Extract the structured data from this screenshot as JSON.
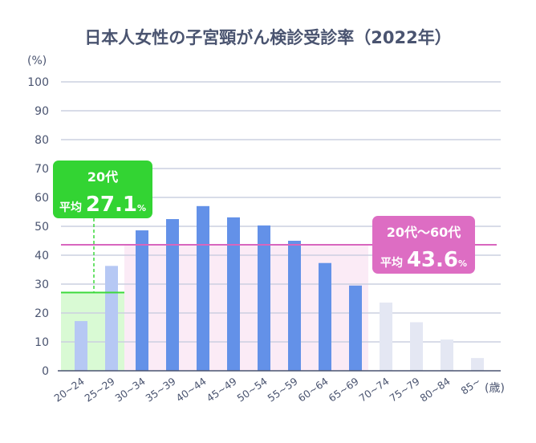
{
  "chart_data": {
    "type": "bar",
    "title": "日本人女性の子宮頸がん検診受診率（2022年）",
    "ylabel": "(%)",
    "xlabel": "(歳)",
    "ylim": [
      0,
      100
    ],
    "yticks": [
      0,
      10,
      20,
      30,
      40,
      50,
      60,
      70,
      80,
      90,
      100
    ],
    "grid": true,
    "categories": [
      "20~24",
      "25~29",
      "30~34",
      "35~39",
      "40~44",
      "45~49",
      "50~54",
      "55~59",
      "60~64",
      "65~69",
      "70~74",
      "75~79",
      "80~84",
      "85~"
    ],
    "values": [
      17.2,
      36.3,
      48.6,
      52.5,
      57.0,
      53.1,
      50.3,
      45.0,
      37.3,
      29.5,
      23.6,
      16.8,
      10.8,
      4.4
    ],
    "groups": [
      "20s",
      "20s",
      "30-60s",
      "30-60s",
      "30-60s",
      "30-60s",
      "30-60s",
      "30-60s",
      "30-60s",
      "30-60s",
      "70plus",
      "70plus",
      "70plus",
      "70plus"
    ],
    "colors": {
      "20s": "#b6c8f4",
      "30-60s": "#6391e8",
      "70plus": "#e4e7f3",
      "grid": "#ccd0e0",
      "axis": "#4a5470",
      "text": "#4a5470",
      "x_tick_muted": "#8f96b2",
      "green_band": "#d9fad4",
      "green_line": "#3cd93c",
      "green_callout": "#33d433",
      "pink_band": "#fbebf6",
      "pink_line": "#d866be",
      "pink_callout": "#dd6dc3"
    },
    "annotations": [
      {
        "id": "avg-20s",
        "header": "20代",
        "prefix": "平均",
        "value_text": "27.1",
        "unit": "%",
        "value": 27.1,
        "span_categories": [
          "20~24",
          "25~29"
        ]
      },
      {
        "id": "avg-20s-60s",
        "header": "20代〜60代",
        "prefix": "平均",
        "value_text": "43.6",
        "unit": "%",
        "value": 43.6,
        "span_categories": [
          "20~24",
          "65~69"
        ]
      }
    ]
  }
}
